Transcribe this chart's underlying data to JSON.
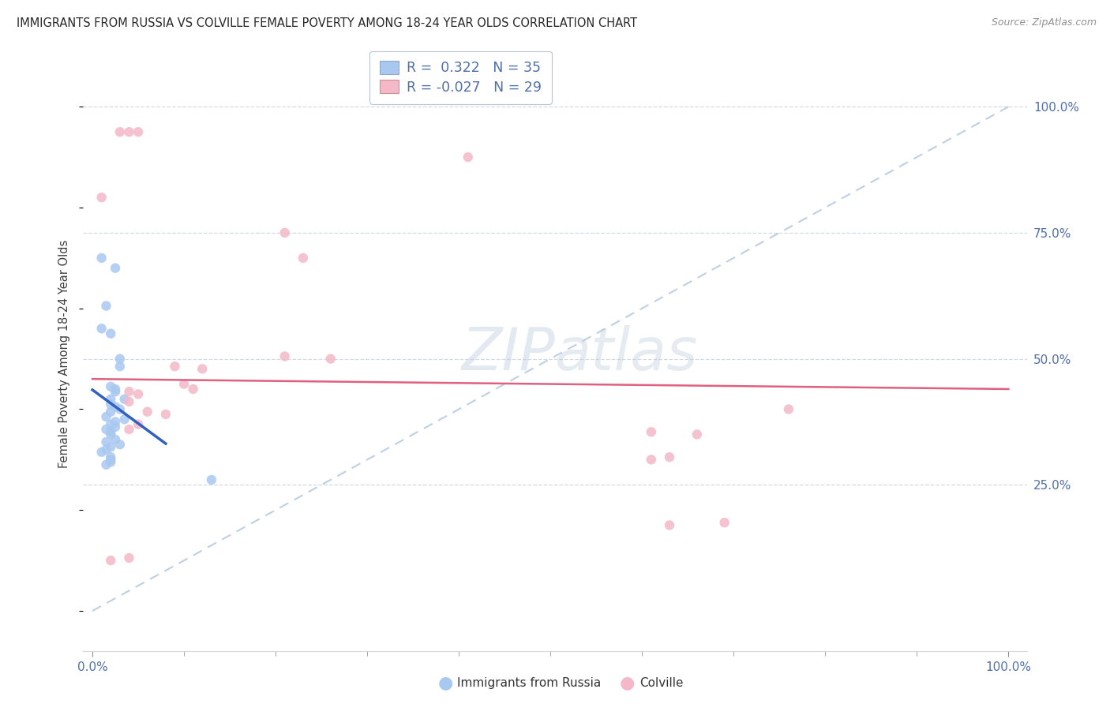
{
  "title": "IMMIGRANTS FROM RUSSIA VS COLVILLE FEMALE POVERTY AMONG 18-24 YEAR OLDS CORRELATION CHART",
  "source": "Source: ZipAtlas.com",
  "ylabel": "Female Poverty Among 18-24 Year Olds",
  "legend_label_blue": "Immigrants from Russia",
  "legend_label_pink": "Colville",
  "r_blue": 0.322,
  "n_blue": 35,
  "r_pink": -0.027,
  "n_pink": 29,
  "blue_fill": "#a8c8f0",
  "pink_fill": "#f4b8c8",
  "blue_line": "#3060c0",
  "pink_line": "#e06080",
  "diag_color": "#b0c4dc",
  "grid_color": "#c8d0dc",
  "blue_scatter_x": [
    1.0,
    2.5,
    1.5,
    1.0,
    2.0,
    3.0,
    3.0,
    2.0,
    2.5,
    2.5,
    2.0,
    3.5,
    2.0,
    2.5,
    3.0,
    2.0,
    1.5,
    3.5,
    2.5,
    2.0,
    2.5,
    1.5,
    2.0,
    2.0,
    2.5,
    1.5,
    3.0,
    2.0,
    1.5,
    1.0,
    2.0,
    2.0,
    1.5,
    2.0,
    13.0
  ],
  "blue_scatter_y": [
    70.0,
    68.0,
    60.5,
    56.0,
    55.0,
    50.0,
    48.5,
    44.5,
    44.0,
    43.5,
    42.0,
    42.0,
    41.0,
    40.5,
    40.0,
    39.5,
    38.5,
    38.0,
    37.5,
    37.0,
    36.5,
    36.0,
    35.5,
    35.0,
    34.0,
    33.5,
    33.0,
    32.5,
    32.0,
    31.5,
    30.5,
    30.0,
    29.0,
    29.5,
    26.0
  ],
  "pink_scatter_x": [
    3.0,
    4.0,
    5.0,
    1.0,
    41.0,
    21.0,
    23.0,
    21.0,
    26.0,
    9.0,
    12.0,
    10.0,
    11.0,
    4.0,
    5.0,
    4.0,
    6.0,
    8.0,
    5.0,
    4.0,
    61.0,
    66.0,
    2.0,
    4.0,
    63.0,
    69.0,
    76.0,
    61.0,
    63.0
  ],
  "pink_scatter_y": [
    95.0,
    95.0,
    95.0,
    82.0,
    90.0,
    75.0,
    70.0,
    50.5,
    50.0,
    48.5,
    48.0,
    45.0,
    44.0,
    43.5,
    43.0,
    41.5,
    39.5,
    39.0,
    37.0,
    36.0,
    35.5,
    35.0,
    10.0,
    10.5,
    17.0,
    17.5,
    40.0,
    30.0,
    30.5
  ],
  "xmin": 0,
  "xmax": 100,
  "ymin": 0,
  "ymax": 100,
  "blue_line_x_start": 0.0,
  "blue_line_x_end": 8.0,
  "pink_line_x_start": 0.0,
  "pink_line_x_end": 100.0
}
